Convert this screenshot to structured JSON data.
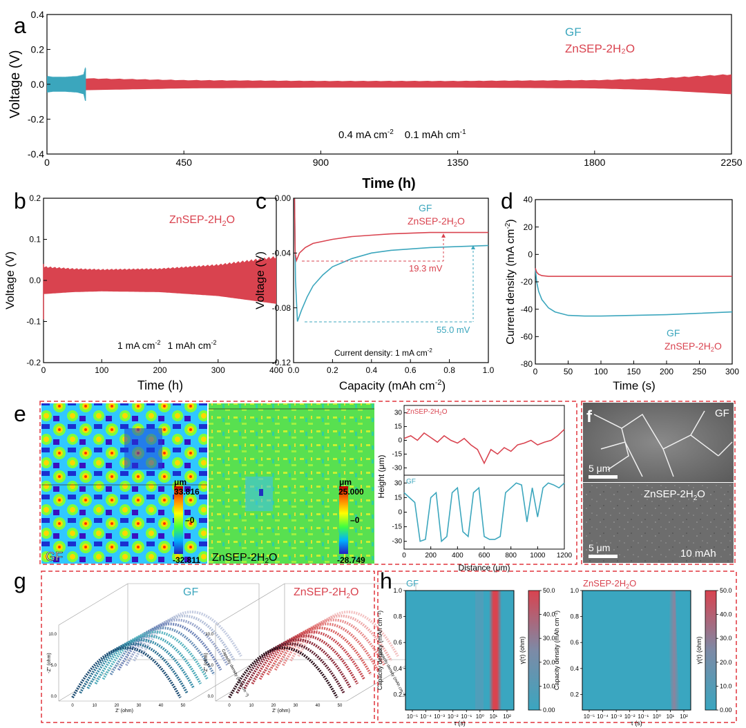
{
  "colors": {
    "gf": "#3ba6bd",
    "zn": "#d9434f",
    "dash_frame": "#e0343c"
  },
  "panel_labels": {
    "a": "a",
    "b": "b",
    "c": "c",
    "d": "d",
    "e": "e",
    "f": "f",
    "g": "g",
    "h": "h"
  },
  "chart_data": [
    {
      "id": "a",
      "type": "line",
      "xlabel": "Time (h)",
      "ylabel": "Voltage (V)",
      "xlim": [
        0,
        2250
      ],
      "ylim": [
        -0.4,
        0.4
      ],
      "xticks": [
        "0",
        "450",
        "900",
        "1350",
        "1800",
        "2250"
      ],
      "yticks": [
        "-0.4",
        "-0.2",
        "0.0",
        "0.2",
        "0.4"
      ],
      "legend": [
        "GF",
        "ZnSEP-2H₂O"
      ],
      "legend_position": "top-right",
      "annotation": [
        "0.4 mA cm",
        "-2",
        "0.1 mAh cm",
        "-1"
      ],
      "series": [
        {
          "name": "GF",
          "envelope_x": [
            0,
            20,
            60,
            100,
            120,
            125,
            128
          ],
          "envelope_y": [
            0.05,
            0.045,
            0.045,
            0.05,
            0.06,
            0.1,
            0.1
          ]
        },
        {
          "name": "ZnSEP-2H₂O",
          "envelope_x": [
            0,
            450,
            900,
            1350,
            1800,
            2000,
            2250
          ],
          "envelope_y": [
            0.04,
            0.025,
            0.02,
            0.02,
            0.025,
            0.035,
            0.06
          ]
        }
      ]
    },
    {
      "id": "b",
      "type": "line",
      "xlabel": "Time (h)",
      "ylabel": "Voltage (V)",
      "xlim": [
        0,
        400
      ],
      "ylim": [
        -0.2,
        0.2
      ],
      "xticks": [
        "0",
        "100",
        "200",
        "300",
        "400"
      ],
      "yticks": [
        "-0.2",
        "-0.1",
        "0.0",
        "0.1",
        "0.2"
      ],
      "legend": [
        "ZnSEP-2H₂O"
      ],
      "annotation": [
        "1 mA cm",
        "-2",
        "1 mAh cm",
        "-2"
      ],
      "series": [
        {
          "name": "ZnSEP-2H₂O",
          "envelope_x": [
            0,
            50,
            100,
            200,
            300,
            350,
            400
          ],
          "envelope_y": [
            0.035,
            0.03,
            0.028,
            0.03,
            0.04,
            0.05,
            0.06
          ]
        }
      ]
    },
    {
      "id": "c",
      "type": "line",
      "xlabel": "Capacity (mAh cm⁻²)",
      "ylabel": "Voltage (V)",
      "xlim": [
        0,
        1.0
      ],
      "ylim": [
        -0.12,
        0
      ],
      "xticks": [
        "0.0",
        "0.2",
        "0.4",
        "0.6",
        "0.8",
        "1.0"
      ],
      "yticks": [
        "-0.12",
        "-0.08",
        "-0.04",
        "0.00"
      ],
      "legend": [
        "GF",
        "ZnSEP-2H₂O"
      ],
      "annotations": [
        "19.3 mV",
        "55.0 mV",
        "Current density: 1 mA cm",
        "-2"
      ],
      "series": [
        {
          "name": "GF",
          "x": [
            0.005,
            0.01,
            0.02,
            0.04,
            0.07,
            0.1,
            0.15,
            0.2,
            0.3,
            0.4,
            0.5,
            0.6,
            0.7,
            0.8,
            0.9,
            1.0
          ],
          "y": [
            0,
            -0.06,
            -0.09,
            -0.082,
            -0.072,
            -0.064,
            -0.056,
            -0.05,
            -0.044,
            -0.04,
            -0.038,
            -0.037,
            -0.036,
            -0.0355,
            -0.035,
            -0.0345
          ]
        },
        {
          "name": "ZnSEP-2H₂O",
          "x": [
            0.005,
            0.008,
            0.015,
            0.03,
            0.06,
            0.1,
            0.2,
            0.3,
            0.4,
            0.5,
            0.6,
            0.7,
            0.8,
            0.9,
            1.0
          ],
          "y": [
            0,
            -0.04,
            -0.0455,
            -0.04,
            -0.036,
            -0.033,
            -0.03,
            -0.028,
            -0.027,
            -0.026,
            -0.0255,
            -0.025,
            -0.025,
            -0.025,
            -0.025
          ]
        }
      ]
    },
    {
      "id": "d",
      "type": "line",
      "xlabel": "Time (s)",
      "ylabel": "Current density (mA cm⁻²)",
      "xlim": [
        0,
        300
      ],
      "ylim": [
        -80,
        40
      ],
      "xticks": [
        "0",
        "50",
        "100",
        "150",
        "200",
        "250",
        "300"
      ],
      "yticks": [
        "-80",
        "-60",
        "-40",
        "-20",
        "0",
        "20",
        "40"
      ],
      "legend": [
        "GF",
        "ZnSEP-2H₂O"
      ],
      "series": [
        {
          "name": "GF",
          "x": [
            0,
            2,
            5,
            10,
            20,
            30,
            50,
            75,
            100,
            150,
            200,
            250,
            300
          ],
          "y": [
            -10,
            -20,
            -27,
            -33,
            -39,
            -42,
            -44.5,
            -45,
            -45,
            -44.5,
            -44,
            -43,
            -42
          ]
        },
        {
          "name": "ZnSEP-2H₂O",
          "x": [
            0,
            2,
            5,
            10,
            20,
            50,
            100,
            200,
            300
          ],
          "y": [
            -10,
            -13,
            -14.5,
            -15.5,
            -16,
            -16,
            -16,
            -16,
            -16
          ]
        }
      ]
    },
    {
      "id": "e-map-gf",
      "type": "heatmap",
      "unit": "μm",
      "scale_max": "33.816",
      "scale_mid": "0",
      "scale_min": "-32.811",
      "label": "GF"
    },
    {
      "id": "e-map-zn",
      "type": "heatmap",
      "unit": "μm",
      "scale_max": "25.000",
      "scale_mid": "0",
      "scale_min": "-28.749",
      "label": "ZnSEP-2H₂O"
    },
    {
      "id": "e-profile",
      "type": "line",
      "xlabel": "Distance (μm)",
      "ylabel": "Height (μm)",
      "xlim": [
        0,
        1200
      ],
      "xticks": [
        "0",
        "200",
        "400",
        "600",
        "800",
        "1000",
        "1200"
      ],
      "yticks_top": [
        "-30",
        "-15",
        "0",
        "15",
        "30"
      ],
      "yticks_bottom": [
        "-30",
        "-15",
        "0",
        "15",
        "30"
      ],
      "series": [
        {
          "name": "ZnSEP-2H₂O",
          "x": [
            0,
            50,
            100,
            150,
            200,
            250,
            300,
            350,
            400,
            450,
            500,
            550,
            600,
            650,
            700,
            750,
            800,
            850,
            900,
            950,
            1000,
            1050,
            1100,
            1150,
            1200
          ],
          "y": [
            2,
            5,
            0,
            8,
            3,
            -2,
            5,
            0,
            -3,
            2,
            -5,
            -10,
            -25,
            -10,
            -15,
            -8,
            -12,
            -5,
            -3,
            0,
            -5,
            -2,
            0,
            5,
            12
          ]
        },
        {
          "name": "GF",
          "x": [
            0,
            40,
            80,
            120,
            160,
            200,
            240,
            280,
            320,
            360,
            400,
            440,
            480,
            520,
            560,
            600,
            640,
            680,
            720,
            760,
            800,
            840,
            880,
            920,
            960,
            1000,
            1040,
            1080,
            1120,
            1160,
            1200
          ],
          "y": [
            20,
            15,
            10,
            -30,
            -28,
            15,
            20,
            -30,
            -25,
            20,
            25,
            -20,
            -25,
            20,
            25,
            -25,
            -28,
            -28,
            -25,
            20,
            25,
            30,
            28,
            -10,
            25,
            -5,
            25,
            30,
            28,
            25,
            30
          ]
        }
      ]
    },
    {
      "id": "g",
      "type": "scatter",
      "xlabel": "Z' (ohm)",
      "ylabel": "-Z'' (ohm)",
      "third_axis": "Capacity density (mAh cm⁻²)",
      "legend": [
        "GF",
        "ZnSEP-2H₂O"
      ]
    },
    {
      "id": "h",
      "type": "heatmap",
      "xlabel": "τ (s)",
      "ylabel": "Capacity density (mAh cm⁻²)",
      "colorbar_label": "γ(τ) (ohm)",
      "xticks": [
        "10⁻⁵",
        "10⁻⁴",
        "10⁻³",
        "10⁻²",
        "10⁻¹",
        "10⁰",
        "10¹",
        "10²"
      ],
      "yticks": [
        "0.2",
        "0.4",
        "0.6",
        "0.8",
        "1.0"
      ],
      "colorbar_ticks": [
        "0.00",
        "10.0",
        "20.0",
        "30.0",
        "40.0",
        "50.0"
      ],
      "panels": [
        "GF",
        "ZnSEP-2H₂O"
      ]
    }
  ],
  "sem": {
    "top_label": "GF",
    "bottom_label": "ZnSEP-2H₂O",
    "scale_top": "5 μm",
    "scale_bottom": "5 μm",
    "capacity": "10 mAh"
  }
}
